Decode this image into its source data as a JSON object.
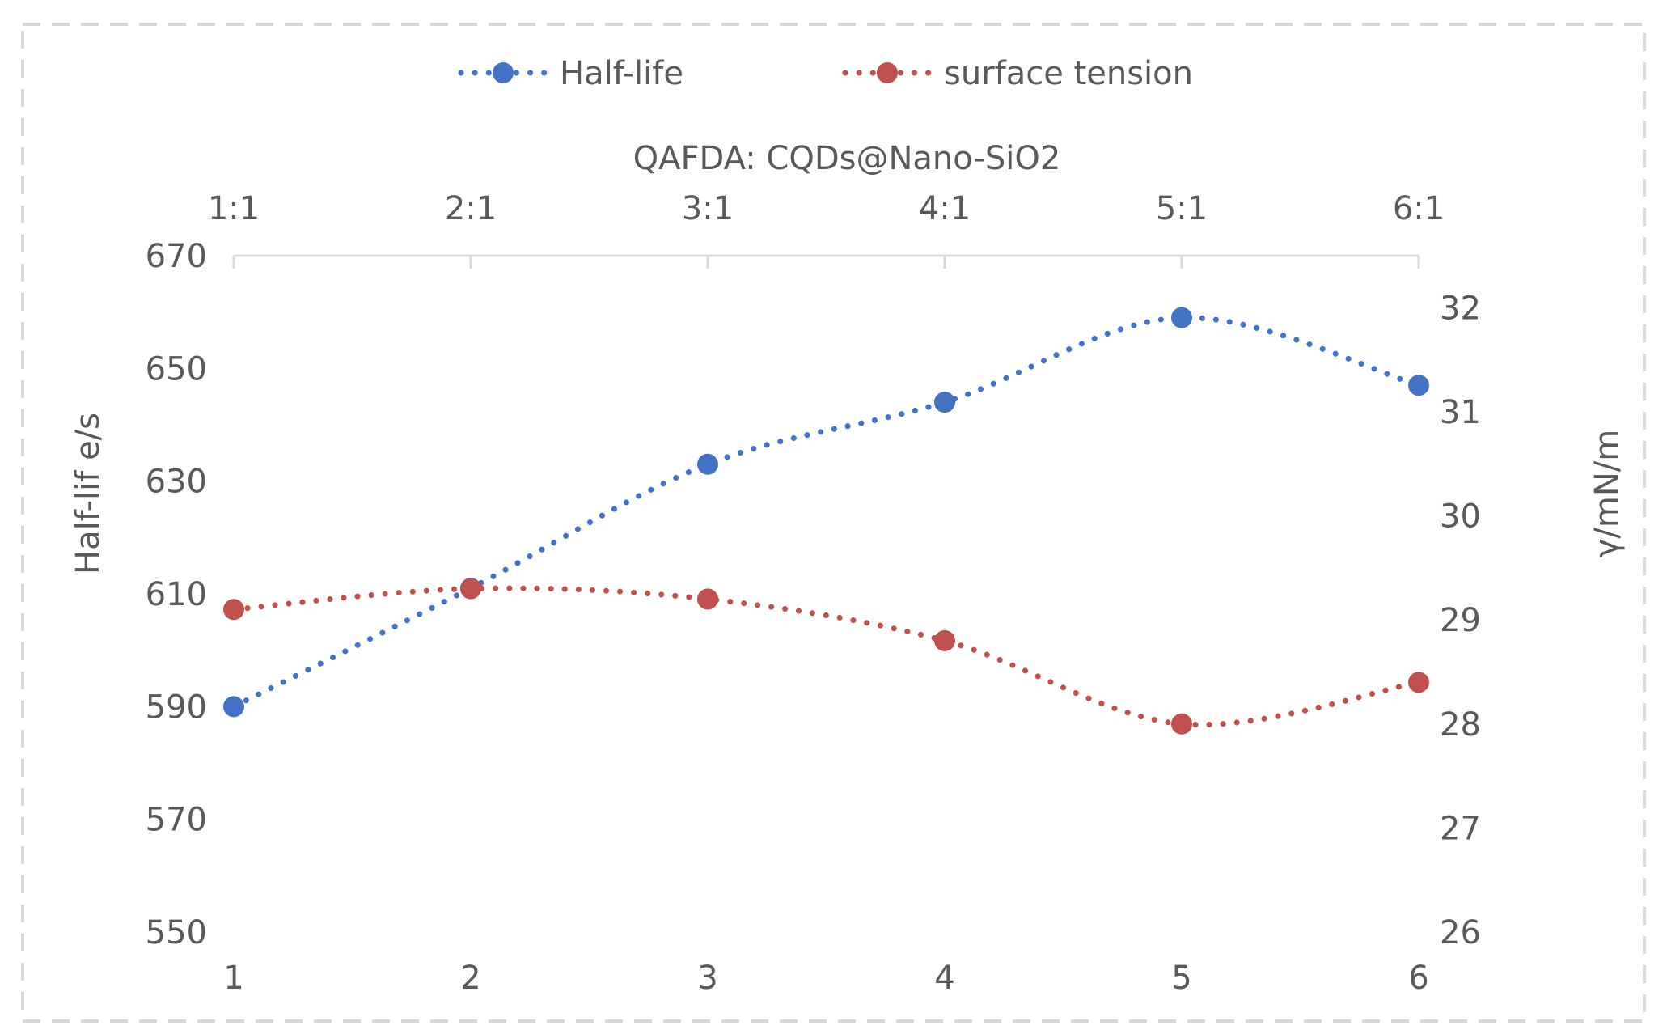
{
  "chart_data": {
    "type": "line",
    "categories": [
      "1",
      "2",
      "3",
      "4",
      "5",
      "6"
    ],
    "top_axis": {
      "title": "QAFDA: CQDs@Nano-SiO2",
      "tick_labels": [
        "1:1",
        "2:1",
        "3:1",
        "4:1",
        "5:1",
        "6:1"
      ]
    },
    "left_axis": {
      "label": "Half-lif e/s",
      "ylim": [
        550,
        670
      ],
      "ticks": [
        550,
        570,
        590,
        610,
        630,
        650,
        670
      ]
    },
    "right_axis": {
      "label": "γ/mN/m",
      "ylim": [
        26,
        32.5
      ],
      "ticks": [
        26,
        27,
        28,
        29,
        30,
        31,
        32
      ]
    },
    "legend": {
      "placement": "top-center"
    },
    "series": [
      {
        "name": "Half-life",
        "axis": "left",
        "color": "#4472c4",
        "style": "dotted",
        "values": [
          590,
          611,
          633,
          644,
          659,
          647
        ]
      },
      {
        "name": "surface tension",
        "axis": "right",
        "color": "#c0504d",
        "style": "dotted",
        "values": [
          29.1,
          29.3,
          29.2,
          28.8,
          28.0,
          28.4
        ]
      }
    ]
  }
}
